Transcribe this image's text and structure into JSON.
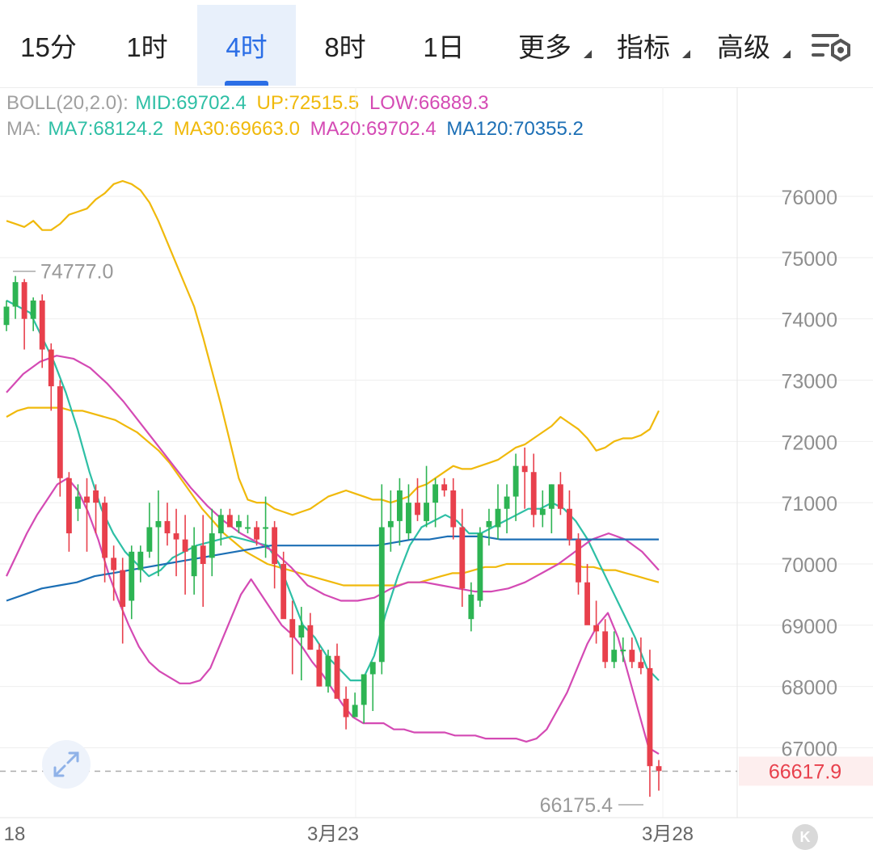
{
  "tabs": [
    {
      "label": "15分",
      "active": false
    },
    {
      "label": "1时",
      "active": false
    },
    {
      "label": "4时",
      "active": true
    },
    {
      "label": "8时",
      "active": false
    },
    {
      "label": "1日",
      "active": false
    },
    {
      "label": "更多",
      "active": false,
      "dropdown": true
    },
    {
      "label": "指标",
      "active": false,
      "dropdown": true
    },
    {
      "label": "高级",
      "active": false,
      "dropdown": true
    }
  ],
  "tools_icon": "chart-settings-icon",
  "expand_icon": "expand-arrows-icon",
  "badge_letter": "K",
  "legend": {
    "boll_name": "BOLL(20,2.0):",
    "boll_mid": "MID:69702.4",
    "boll_up": "UP:72515.5",
    "boll_low": "LOW:66889.3",
    "ma_name": "MA:",
    "ma7": "MA7:68124.2",
    "ma30": "MA30:69663.0",
    "ma20": "MA20:69702.4",
    "ma120": "MA120:70355.2"
  },
  "colors": {
    "up": "#2db453",
    "down": "#e8404c",
    "active_tab": "#2b6ee6",
    "boll_label": "#a0a0a0",
    "ma7": "#2ebfa5",
    "ma30": "#f0b90b",
    "ma20": "#d44ab4",
    "ma120": "#1c6fb5",
    "boll_band": "#f0b90b",
    "boll_low_band": "#d44ab4",
    "axis_text": "#8e8e8e",
    "last_price": "#e8404c"
  },
  "chart_data": {
    "type": "candlestick",
    "y_axis": {
      "min": 66000,
      "max": 76000,
      "ticks": [
        76000,
        75000,
        74000,
        73000,
        72000,
        71000,
        70000,
        69000,
        68000,
        67000
      ]
    },
    "x_labels": [
      "18",
      "3月23",
      "3月28"
    ],
    "high_marker": "74777.0",
    "low_marker": "66175.4",
    "last_price": "66617.9",
    "candles": [
      [
        73900,
        74300,
        73800,
        74200
      ],
      [
        74200,
        74700,
        74000,
        74600
      ],
      [
        74600,
        74650,
        73500,
        74000
      ],
      [
        74000,
        74350,
        73800,
        74300
      ],
      [
        74300,
        74400,
        73200,
        73500
      ],
      [
        73500,
        73600,
        72500,
        72900
      ],
      [
        72900,
        73000,
        71100,
        71400
      ],
      [
        71400,
        71500,
        70200,
        70500
      ],
      [
        70900,
        71300,
        70700,
        71100
      ],
      [
        71100,
        71400,
        70200,
        71000
      ],
      [
        71200,
        71300,
        70500,
        71000
      ],
      [
        71000,
        71100,
        69700,
        70100
      ],
      [
        70100,
        70300,
        69400,
        69900
      ],
      [
        69900,
        70100,
        68700,
        69300
      ],
      [
        69400,
        70300,
        69100,
        70200
      ],
      [
        69900,
        70300,
        69700,
        70200
      ],
      [
        70200,
        71000,
        70100,
        70600
      ],
      [
        70600,
        71200,
        69800,
        70700
      ],
      [
        70700,
        71000,
        70300,
        70500
      ],
      [
        70500,
        70900,
        69800,
        70400
      ],
      [
        70400,
        70800,
        69500,
        70200
      ],
      [
        69800,
        70600,
        69500,
        70300
      ],
      [
        70300,
        70800,
        69300,
        70000
      ],
      [
        70100,
        70900,
        69800,
        70500
      ],
      [
        70500,
        70900,
        70300,
        70800
      ],
      [
        70800,
        70900,
        70600,
        70600
      ],
      [
        70600,
        70800,
        70500,
        70700
      ],
      [
        70600,
        70800,
        70500,
        70600
      ],
      [
        70600,
        70700,
        70300,
        70400
      ],
      [
        70600,
        71100,
        70100,
        70600
      ],
      [
        70600,
        70700,
        69600,
        70000
      ],
      [
        70000,
        70200,
        69200,
        69100
      ],
      [
        69100,
        69400,
        68200,
        68800
      ],
      [
        68800,
        69300,
        68100,
        69000
      ],
      [
        69000,
        69200,
        68600,
        68600
      ],
      [
        68600,
        68700,
        68000,
        68000
      ],
      [
        68000,
        68600,
        67900,
        68500
      ],
      [
        68500,
        68700,
        67900,
        67800
      ],
      [
        67800,
        68000,
        67300,
        67500
      ],
      [
        67500,
        67900,
        67500,
        67700
      ],
      [
        67700,
        68100,
        67400,
        68200
      ],
      [
        68200,
        68400,
        67600,
        68400
      ],
      [
        68400,
        71300,
        68200,
        70600
      ],
      [
        70600,
        71200,
        70200,
        70700
      ],
      [
        70700,
        71400,
        70300,
        71200
      ],
      [
        70500,
        71300,
        70400,
        71000
      ],
      [
        71000,
        71400,
        70700,
        70800
      ],
      [
        70700,
        71600,
        70600,
        71000
      ],
      [
        71000,
        71400,
        70600,
        71300
      ],
      [
        71300,
        71400,
        71100,
        71200
      ],
      [
        71200,
        71400,
        70400,
        70600
      ],
      [
        70600,
        70900,
        69300,
        69600
      ],
      [
        69100,
        69700,
        68900,
        69500
      ],
      [
        69400,
        70600,
        69300,
        70500
      ],
      [
        70600,
        70900,
        70300,
        70700
      ],
      [
        70600,
        71300,
        70400,
        70900
      ],
      [
        70900,
        71300,
        70500,
        71100
      ],
      [
        71100,
        71800,
        70700,
        71600
      ],
      [
        71600,
        71900,
        70900,
        71500
      ],
      [
        71500,
        71800,
        70600,
        70800
      ],
      [
        70800,
        71200,
        70600,
        70900
      ],
      [
        70900,
        71300,
        70500,
        71300
      ],
      [
        71300,
        71500,
        70800,
        70900
      ],
      [
        70900,
        71200,
        70300,
        70400
      ],
      [
        70400,
        70500,
        69500,
        69700
      ],
      [
        69700,
        70000,
        69100,
        69000
      ],
      [
        69000,
        69400,
        68700,
        68900
      ],
      [
        68900,
        69100,
        68300,
        68400
      ],
      [
        68400,
        68900,
        68300,
        68600
      ],
      [
        68600,
        68800,
        68400,
        68600
      ],
      [
        68600,
        68800,
        68300,
        68400
      ],
      [
        68400,
        68800,
        68200,
        68300
      ],
      [
        68300,
        68600,
        66200,
        66700
      ],
      [
        66700,
        66800,
        66300,
        66620
      ]
    ],
    "series": [
      {
        "name": "UP",
        "values": [
          75600,
          75550,
          75500,
          75600,
          75450,
          75450,
          75550,
          75700,
          75750,
          75800,
          75950,
          76050,
          76200,
          76250,
          76200,
          76100,
          75900,
          75600,
          75250,
          74900,
          74550,
          74200,
          73700,
          73150,
          72600,
          72000,
          71400,
          71050,
          71000,
          71000,
          70900,
          70850,
          70800,
          70850,
          70900,
          71000,
          71100,
          71150,
          71200,
          71150,
          71100,
          71050,
          71050,
          71000,
          71050,
          71100,
          71250,
          71300,
          71400,
          71500,
          71600,
          71550,
          71550,
          71600,
          71650,
          71700,
          71800,
          71900,
          71950,
          72050,
          72150,
          72250,
          72400,
          72300,
          72200,
          72050,
          71850,
          71900,
          72000,
          72050,
          72050,
          72100,
          72200,
          72500
        ]
      },
      {
        "name": "MID",
        "values": [
          72400,
          72500,
          72550,
          72550,
          72550,
          72550,
          72500,
          72500,
          72450,
          72400,
          72350,
          72250,
          72150,
          72000,
          71850,
          71650,
          71400,
          71150,
          70900,
          70700,
          70500,
          70350,
          70200,
          70100,
          70000,
          69950,
          69900,
          69850,
          69800,
          69750,
          69700,
          69650,
          69650,
          69650,
          69650,
          69650,
          69650,
          69700,
          69700,
          69750,
          69800,
          69850,
          69850,
          69900,
          69950,
          69950,
          70000,
          70000,
          70000,
          70000,
          70000,
          70000,
          70000,
          69950,
          69950,
          69900,
          69900,
          69850,
          69800,
          69750,
          69700
        ]
      },
      {
        "name": "LOW",
        "values": [
          69800,
          70150,
          70500,
          70800,
          71050,
          71300,
          71400,
          71200,
          70850,
          70400,
          69850,
          69400,
          69000,
          68650,
          68400,
          68250,
          68150,
          68050,
          68050,
          68100,
          68300,
          68700,
          69100,
          69500,
          69750,
          69500,
          69250,
          69000,
          68850,
          68650,
          68400,
          68200,
          67950,
          67700,
          67500,
          67400,
          67400,
          67400,
          67300,
          67300,
          67250,
          67250,
          67250,
          67250,
          67200,
          67200,
          67200,
          67150,
          67150,
          67150,
          67150,
          67100,
          67150,
          67300,
          67600,
          67900,
          68300,
          68700,
          69000,
          69200,
          68800,
          68200,
          67600,
          67000,
          66900
        ]
      },
      {
        "name": "MA7",
        "values": [
          74300,
          74200,
          74100,
          73700,
          73300,
          72800,
          72200,
          71500,
          70900,
          70500,
          70200,
          70000,
          69800,
          69900,
          70100,
          70200,
          70300,
          70350,
          70400,
          70450,
          70400,
          70350,
          70300,
          70000,
          69500,
          69000,
          68800,
          68500,
          68300,
          68100,
          68100,
          68500,
          69200,
          69800,
          70300,
          70600,
          70700,
          70800,
          70700,
          70500,
          70500,
          70600,
          70700,
          70800,
          70900,
          70900,
          71000,
          70900,
          70700,
          70400,
          70000,
          69600,
          69200,
          68800,
          68300,
          68100
        ]
      },
      {
        "name": "MA20",
        "values": [
          72800,
          73100,
          73300,
          73400,
          73350,
          73200,
          72950,
          72650,
          72300,
          71950,
          71600,
          71250,
          70950,
          70700,
          70500,
          70350,
          70200,
          69950,
          69650,
          69500,
          69400,
          69400,
          69450,
          69600,
          69700,
          69700,
          69650,
          69600,
          69550,
          69550,
          69600,
          69700,
          69850,
          70000,
          70200,
          70400,
          70500,
          70400,
          70200,
          69900
        ]
      },
      {
        "name": "MA120",
        "values": [
          69400,
          69500,
          69600,
          69650,
          69700,
          69800,
          69850,
          69900,
          69950,
          70000,
          70050,
          70100,
          70150,
          70200,
          70250,
          70300,
          70300,
          70300,
          70300,
          70300,
          70300,
          70300,
          70350,
          70400,
          70400,
          70450,
          70450,
          70450,
          70400,
          70400,
          70400,
          70400,
          70400,
          70400,
          70400,
          70400,
          70400,
          70400
        ]
      }
    ]
  }
}
